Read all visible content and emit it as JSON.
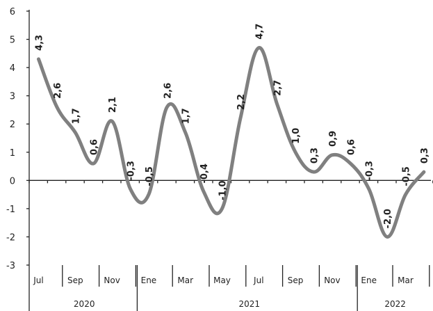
{
  "chart_data": {
    "type": "line",
    "title": "",
    "xlabel": "",
    "ylabel": "",
    "ylim": [
      -3,
      6
    ],
    "y_ticks": [
      6,
      5,
      4,
      3,
      2,
      1,
      0,
      -1,
      -2,
      -3
    ],
    "grid": false,
    "series": [
      {
        "color": "#808080",
        "values": [
          4.3,
          2.6,
          1.7,
          0.6,
          2.1,
          -0.3,
          -0.5,
          2.6,
          1.7,
          -0.4,
          -1.0,
          2.2,
          4.7,
          2.7,
          1.0,
          0.3,
          0.9,
          0.6,
          -0.3,
          -2.0,
          -0.5,
          0.3
        ],
        "labels": [
          "4,3",
          "2,6",
          "1,7",
          "0,6",
          "2,1",
          "-0,3",
          "-0,5",
          "2,6",
          "1,7",
          "-0,4",
          "-1,0",
          "2,2",
          "4,7",
          "2,7",
          "1,0",
          "0,3",
          "0,9",
          "0,6",
          "-0,3",
          "-2,0",
          "-0,5",
          "0,3"
        ]
      }
    ],
    "month_labels": [
      {
        "index": 0,
        "text": "Jul"
      },
      {
        "index": 2,
        "text": "Sep"
      },
      {
        "index": 4,
        "text": "Nov"
      },
      {
        "index": 6,
        "text": "Ene"
      },
      {
        "index": 8,
        "text": "Mar"
      },
      {
        "index": 10,
        "text": "May"
      },
      {
        "index": 12,
        "text": "Jul"
      },
      {
        "index": 14,
        "text": "Sep"
      },
      {
        "index": 16,
        "text": "Nov"
      },
      {
        "index": 18,
        "text": "Ene"
      },
      {
        "index": 20,
        "text": "Mar"
      }
    ],
    "years": [
      {
        "text": "2020",
        "start": 0,
        "end": 5
      },
      {
        "text": "2021",
        "start": 6,
        "end": 17
      },
      {
        "text": "2022",
        "start": 18,
        "end": 21
      }
    ]
  }
}
